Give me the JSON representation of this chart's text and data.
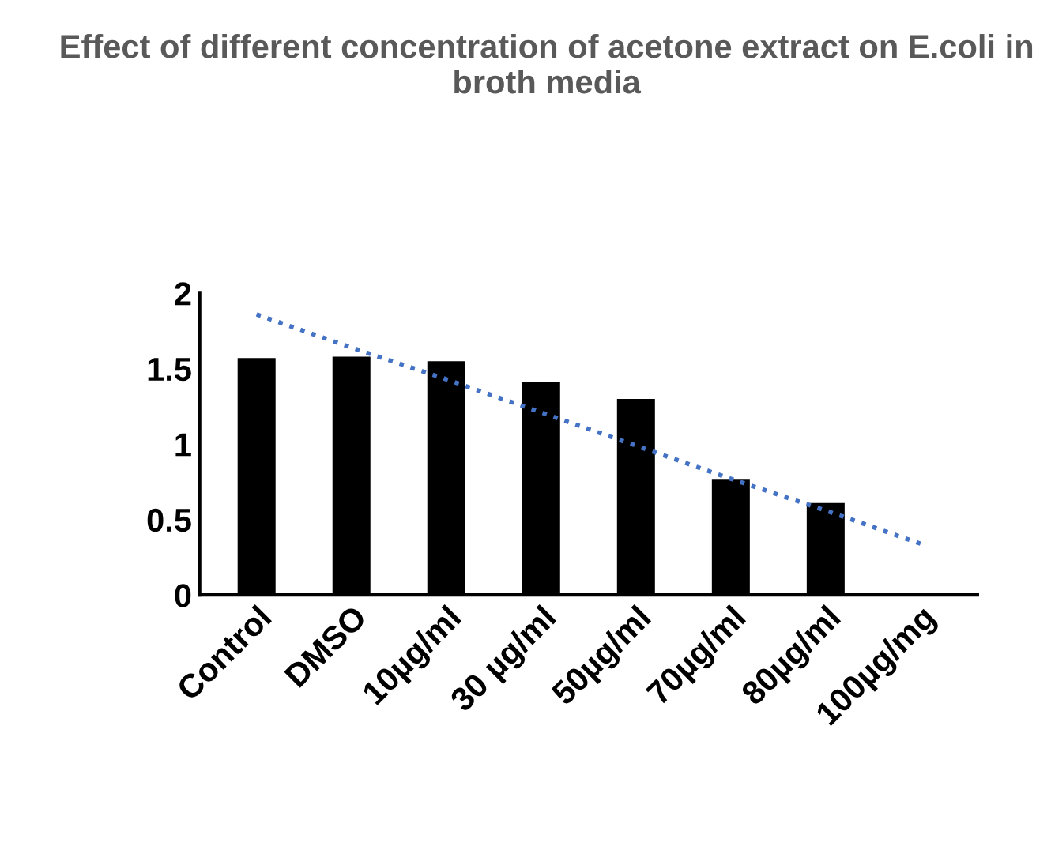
{
  "chart_data": {
    "type": "bar",
    "title": "Effect of different concentration of acetone extract on E.coli in broth media",
    "categories": [
      "Control",
      "DMSO",
      "10µg/ml",
      "30 µg/ml",
      "50µg/ml",
      "70µg/ml",
      "80µg/ml",
      "100µg/mg"
    ],
    "series": [
      {
        "color": "#000000",
        "values": [
          1.57,
          1.58,
          1.55,
          1.41,
          1.3,
          0.77,
          0.61,
          0
        ]
      },
      {
        "type": "line",
        "color": "#4472c4",
        "line_style": "dotted",
        "values": [
          1.86,
          1.64,
          1.43,
          1.21,
          0.99,
          0.77,
          0.56,
          0.34
        ]
      }
    ],
    "ylim": [
      0,
      2
    ],
    "yticks": [
      0,
      0.5,
      1,
      1.5,
      2
    ],
    "grid": false,
    "legend": false
  }
}
